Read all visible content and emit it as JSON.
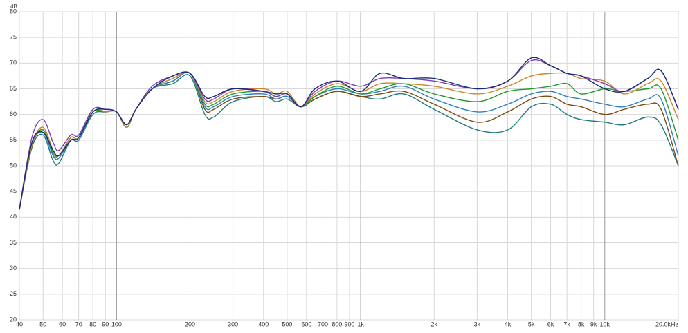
{
  "chart_data": {
    "type": "line",
    "y_unit": "dB",
    "log_x": true,
    "grid": true,
    "xlim": [
      40,
      20000
    ],
    "ylim": [
      20,
      80
    ],
    "yticks": [
      20,
      25,
      30,
      35,
      40,
      45,
      50,
      55,
      60,
      65,
      70,
      75,
      80
    ],
    "xticks": [
      40,
      50,
      60,
      70,
      80,
      90,
      100,
      200,
      300,
      400,
      500,
      600,
      700,
      800,
      900,
      {
        "value": 1000,
        "label": "1k"
      },
      {
        "value": 2000,
        "label": "2k"
      },
      {
        "value": 3000,
        "label": "3k"
      },
      {
        "value": 4000,
        "label": "4k"
      },
      {
        "value": 5000,
        "label": "5k"
      },
      {
        "value": 6000,
        "label": "6k"
      },
      {
        "value": 7000,
        "label": "7k"
      },
      {
        "value": 8000,
        "label": "8k"
      },
      {
        "value": 9000,
        "label": "9k"
      },
      {
        "value": 10000,
        "label": "10k"
      },
      {
        "value": 20000,
        "label": "20.0kHz"
      }
    ],
    "x": [
      40,
      45,
      50,
      55,
      58,
      65,
      70,
      80,
      90,
      100,
      110,
      120,
      140,
      170,
      200,
      230,
      250,
      300,
      400,
      450,
      500,
      570,
      650,
      800,
      1000,
      1200,
      1500,
      2000,
      3000,
      4000,
      5000,
      6000,
      7000,
      8000,
      10000,
      12000,
      15000,
      17000,
      20000
    ],
    "series": [
      {
        "color": "#1b2a7a",
        "values": [
          41.5,
          54.5,
          56.5,
          53,
          52,
          55,
          55.5,
          60.5,
          61,
          60.5,
          58,
          61,
          65,
          67.5,
          68,
          63.5,
          63.5,
          65,
          64.5,
          64,
          64,
          61.5,
          65,
          66.5,
          64.5,
          68,
          67,
          67,
          65,
          66.5,
          71,
          69.5,
          68,
          67.5,
          65,
          64.5,
          67,
          68.5,
          61
        ]
      },
      {
        "color": "#7a3fb0",
        "values": [
          41.5,
          55.5,
          59,
          54.5,
          53,
          56,
          56,
          61,
          61,
          60.5,
          58,
          61,
          65.5,
          67.5,
          68,
          63,
          63,
          65,
          64.5,
          63.5,
          64,
          61.5,
          64.5,
          66.5,
          65.5,
          67,
          67,
          66.5,
          65,
          66.5,
          70.5,
          69.5,
          68,
          67.5,
          66,
          64.5,
          67,
          68.5,
          61
        ]
      },
      {
        "color": "#d0842a",
        "values": [
          41.5,
          54,
          57.5,
          53,
          52,
          55.5,
          55.5,
          61,
          60.5,
          60.5,
          57.5,
          61,
          65,
          67,
          68,
          62.5,
          62.5,
          64.5,
          65,
          64,
          64.5,
          61.5,
          64,
          66,
          64.5,
          66,
          66,
          65.5,
          64,
          65.5,
          67.5,
          68,
          68,
          67,
          66.5,
          64,
          66,
          66.5,
          59
        ]
      },
      {
        "color": "#1f9a2a",
        "values": [
          41.5,
          54,
          57,
          52.5,
          52,
          55.5,
          55.5,
          60.5,
          60.5,
          60.5,
          57.5,
          61,
          65,
          67,
          68,
          62,
          62,
          64,
          64.5,
          63.5,
          64,
          61.5,
          63.5,
          65.5,
          64,
          65,
          66,
          64,
          62.5,
          64.5,
          65,
          65.5,
          66,
          64,
          65,
          64.5,
          65,
          65,
          55
        ]
      },
      {
        "color": "#2f7fc0",
        "values": [
          41.5,
          54,
          56.5,
          52,
          51.5,
          55,
          55,
          60.5,
          60.5,
          60.5,
          57.5,
          61,
          65,
          66.5,
          68,
          61.5,
          61.5,
          63.5,
          64,
          63,
          63.5,
          61.5,
          63.5,
          65,
          64,
          64.5,
          65.5,
          63,
          60.5,
          62,
          64,
          64.5,
          63.5,
          63,
          62,
          61.5,
          63,
          63,
          52
        ]
      },
      {
        "color": "#7a4a12",
        "values": [
          41.5,
          54,
          56.5,
          52,
          51.5,
          55,
          55,
          60.5,
          60.5,
          60.5,
          57.5,
          61,
          65,
          66.5,
          68,
          61,
          61,
          63,
          63.5,
          63,
          63.5,
          61.5,
          63,
          64.5,
          63.5,
          64,
          64.5,
          62,
          58.5,
          60.5,
          63,
          63.5,
          62,
          61.5,
          60,
          61,
          62,
          61,
          50
        ]
      },
      {
        "color": "#1f7a80",
        "values": [
          41.5,
          53.5,
          56,
          51,
          50.5,
          55,
          55,
          60,
          60.5,
          60.5,
          57.5,
          61,
          65,
          66,
          67.5,
          60,
          59.5,
          62.5,
          63.5,
          62.5,
          63,
          61.5,
          63,
          64.5,
          63.5,
          63,
          64,
          61,
          57,
          57,
          61.5,
          62,
          60,
          59,
          58.5,
          58,
          59.5,
          58,
          50
        ]
      }
    ]
  }
}
